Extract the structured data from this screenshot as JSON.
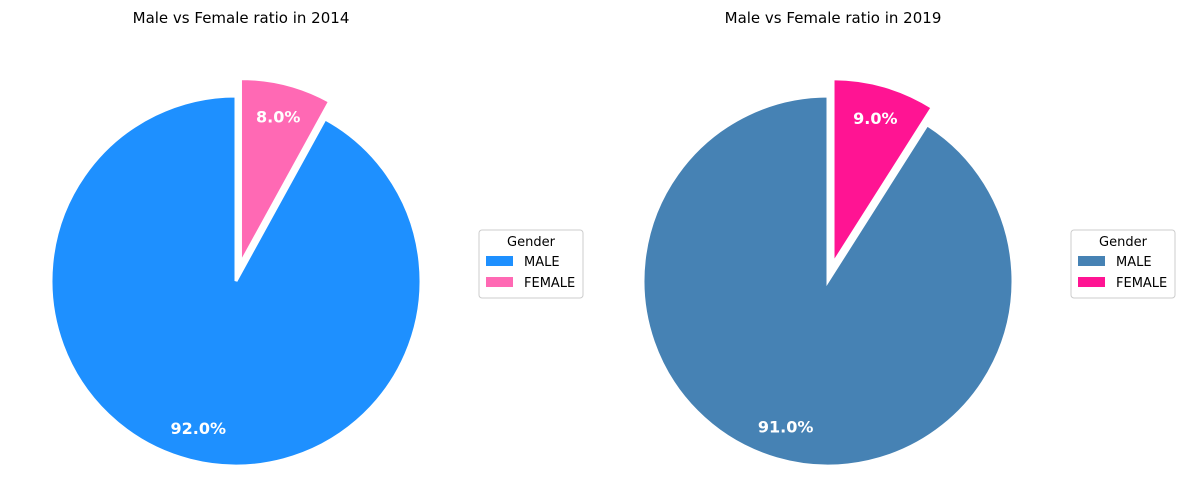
{
  "chart_data": [
    {
      "type": "pie",
      "title": "Male vs Female ratio in 2014",
      "legend_title": "Gender",
      "legend_position": "right",
      "slices": [
        {
          "label": "MALE",
          "value": 92.0,
          "pct_label": "92.0%",
          "color": "#1E90FF",
          "exploded": false
        },
        {
          "label": "FEMALE",
          "value": 8.0,
          "pct_label": "8.0%",
          "color": "#FF69B4",
          "exploded": true
        }
      ]
    },
    {
      "type": "pie",
      "title": "Male vs Female ratio in 2019",
      "legend_title": "Gender",
      "legend_position": "right",
      "slices": [
        {
          "label": "MALE",
          "value": 91.0,
          "pct_label": "91.0%",
          "color": "#4682B4",
          "exploded": false
        },
        {
          "label": "FEMALE",
          "value": 9.0,
          "pct_label": "9.0%",
          "color": "#FF1493",
          "exploded": true
        }
      ]
    }
  ]
}
